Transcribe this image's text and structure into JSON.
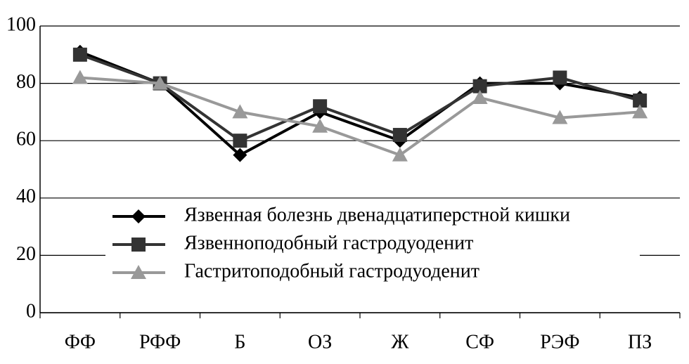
{
  "chart_data": {
    "type": "line",
    "categories": [
      "ФФ",
      "РФФ",
      "Б",
      "ОЗ",
      "Ж",
      "СФ",
      "РЭФ",
      "ПЗ"
    ],
    "series": [
      {
        "name": "Язвенная болезнь двенадцатиперстной кишки",
        "color": "#000000",
        "marker": "diamond",
        "values": [
          91,
          80,
          55,
          70,
          60,
          80,
          80,
          75
        ]
      },
      {
        "name": "Язвенноподобный гастродуоденит",
        "color": "#333333",
        "marker": "square",
        "values": [
          90,
          80,
          60,
          72,
          62,
          79,
          82,
          74
        ]
      },
      {
        "name": "Гастритоподобный гастродуоденит",
        "color": "#999999",
        "marker": "triangle",
        "values": [
          82,
          80,
          70,
          65,
          55,
          75,
          68,
          70
        ]
      }
    ],
    "ylim": [
      0,
      100
    ],
    "yticks": [
      0,
      20,
      40,
      60,
      80,
      100
    ],
    "grid": true
  }
}
